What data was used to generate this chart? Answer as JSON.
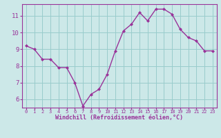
{
  "x": [
    0,
    1,
    2,
    3,
    4,
    5,
    6,
    7,
    8,
    9,
    10,
    11,
    12,
    13,
    14,
    15,
    16,
    17,
    18,
    19,
    20,
    21,
    22,
    23
  ],
  "y": [
    9.2,
    9.0,
    8.4,
    8.4,
    7.9,
    7.9,
    7.0,
    5.6,
    6.3,
    6.6,
    7.5,
    8.9,
    10.1,
    10.5,
    11.2,
    10.7,
    11.4,
    11.4,
    11.1,
    10.2,
    9.7,
    9.5,
    8.9,
    8.9
  ],
  "line_color": "#993399",
  "marker": "D",
  "marker_size": 2.0,
  "bg_color": "#cce8e8",
  "grid_color": "#99cccc",
  "xlabel": "Windchill (Refroidissement éolien,°C)",
  "xlabel_color": "#993399",
  "tick_color": "#993399",
  "ylim": [
    5.5,
    11.7
  ],
  "xlim": [
    -0.5,
    23.5
  ],
  "yticks": [
    6,
    7,
    8,
    9,
    10,
    11
  ],
  "xticks": [
    0,
    1,
    2,
    3,
    4,
    5,
    6,
    7,
    8,
    9,
    10,
    11,
    12,
    13,
    14,
    15,
    16,
    17,
    18,
    19,
    20,
    21,
    22,
    23
  ],
  "spine_color": "#993399",
  "linewidth": 1.0,
  "xlabel_fontsize": 6.0,
  "xtick_fontsize": 5.0,
  "ytick_fontsize": 6.5
}
